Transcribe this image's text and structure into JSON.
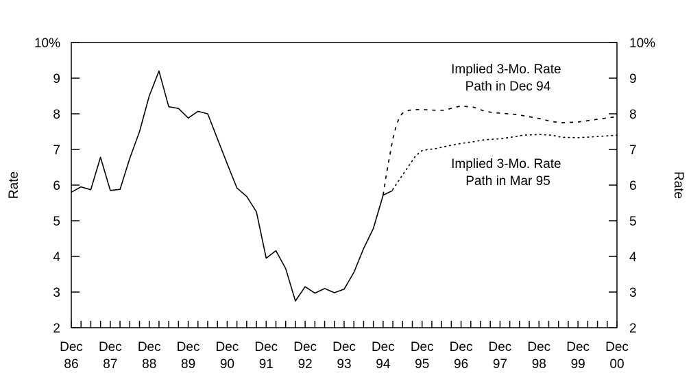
{
  "chart_data": {
    "type": "line",
    "title": "",
    "ylabel_left": "Rate",
    "ylabel_right": "Rate",
    "ylim": [
      2,
      10
    ],
    "yticks": [
      2,
      3,
      4,
      5,
      6,
      7,
      8,
      9,
      10
    ],
    "ytick_labels": [
      "2",
      "3",
      "4",
      "5",
      "6",
      "7",
      "8",
      "9",
      "10%"
    ],
    "xlim": [
      1986.917,
      2000.917
    ],
    "xticks": [
      1986.917,
      1987.917,
      1988.917,
      1989.917,
      1990.917,
      1991.917,
      1992.917,
      1993.917,
      1994.917,
      1995.917,
      1996.917,
      1997.917,
      1998.917,
      1999.917,
      2000.917
    ],
    "xtick_labels": [
      [
        "Dec",
        "86"
      ],
      [
        "Dec",
        "87"
      ],
      [
        "Dec",
        "88"
      ],
      [
        "Dec",
        "89"
      ],
      [
        "Dec",
        "90"
      ],
      [
        "Dec",
        "91"
      ],
      [
        "Dec",
        "92"
      ],
      [
        "Dec",
        "93"
      ],
      [
        "Dec",
        "94"
      ],
      [
        "Dec",
        "95"
      ],
      [
        "Dec",
        "96"
      ],
      [
        "Dec",
        "97"
      ],
      [
        "Dec",
        "98"
      ],
      [
        "Dec",
        "99"
      ],
      [
        "Dec",
        "00"
      ]
    ],
    "minor_ticks_per_year": 4,
    "grid": false,
    "series": [
      {
        "style": "solid",
        "x": [
          1986.917,
          1987.167,
          1987.417,
          1987.667,
          1987.917,
          1988.167,
          1988.417,
          1988.667,
          1988.917,
          1989.167,
          1989.417,
          1989.667,
          1989.917,
          1990.167,
          1990.417,
          1990.667,
          1990.917,
          1991.167,
          1991.417,
          1991.667,
          1991.917,
          1992.167,
          1992.417,
          1992.667,
          1992.917,
          1993.167,
          1993.417,
          1993.667,
          1993.917,
          1994.167,
          1994.417,
          1994.667,
          1994.917,
          1995.167
        ],
        "y": [
          5.8,
          5.95,
          5.87,
          6.78,
          5.85,
          5.88,
          6.75,
          7.5,
          8.5,
          9.2,
          8.2,
          8.15,
          7.88,
          8.07,
          8.0,
          7.3,
          6.6,
          5.92,
          5.68,
          5.25,
          3.95,
          4.16,
          3.66,
          2.75,
          3.15,
          2.97,
          3.1,
          2.98,
          3.08,
          3.55,
          4.22,
          4.78,
          5.72,
          5.85
        ]
      },
      {
        "style": "dashed",
        "annotation": [
          "Implied 3-Mo. Rate",
          "Path in Dec 94"
        ],
        "x": [
          1994.917,
          1995.0,
          1995.083,
          1995.167,
          1995.25,
          1995.333,
          1995.417,
          1995.583,
          1995.75,
          1995.917,
          1996.25,
          1996.5,
          1996.75,
          1996.917,
          1997.25,
          1997.5,
          1997.75,
          1997.917,
          1998.25,
          1998.5,
          1998.917,
          1999.25,
          1999.5,
          1999.917,
          2000.25,
          2000.5,
          2000.917
        ],
        "y": [
          5.72,
          6.3,
          6.8,
          7.3,
          7.65,
          7.9,
          8.02,
          8.1,
          8.12,
          8.12,
          8.1,
          8.1,
          8.18,
          8.22,
          8.18,
          8.08,
          8.03,
          8.02,
          7.99,
          7.95,
          7.87,
          7.78,
          7.75,
          7.77,
          7.82,
          7.86,
          7.92
        ]
      },
      {
        "style": "dotted",
        "annotation": [
          "Implied 3-Mo. Rate",
          "Path in Mar 95"
        ],
        "x": [
          1995.167,
          1995.333,
          1995.583,
          1995.75,
          1995.917,
          1996.083,
          1996.25,
          1996.5,
          1996.917,
          1997.25,
          1997.5,
          1997.917,
          1998.25,
          1998.5,
          1998.917,
          1999.25,
          1999.5,
          1999.917,
          2000.25,
          2000.5,
          2000.917
        ],
        "y": [
          5.88,
          6.15,
          6.55,
          6.82,
          6.97,
          7.0,
          7.02,
          7.08,
          7.17,
          7.22,
          7.27,
          7.3,
          7.35,
          7.4,
          7.42,
          7.4,
          7.34,
          7.33,
          7.35,
          7.37,
          7.4
        ]
      }
    ]
  }
}
